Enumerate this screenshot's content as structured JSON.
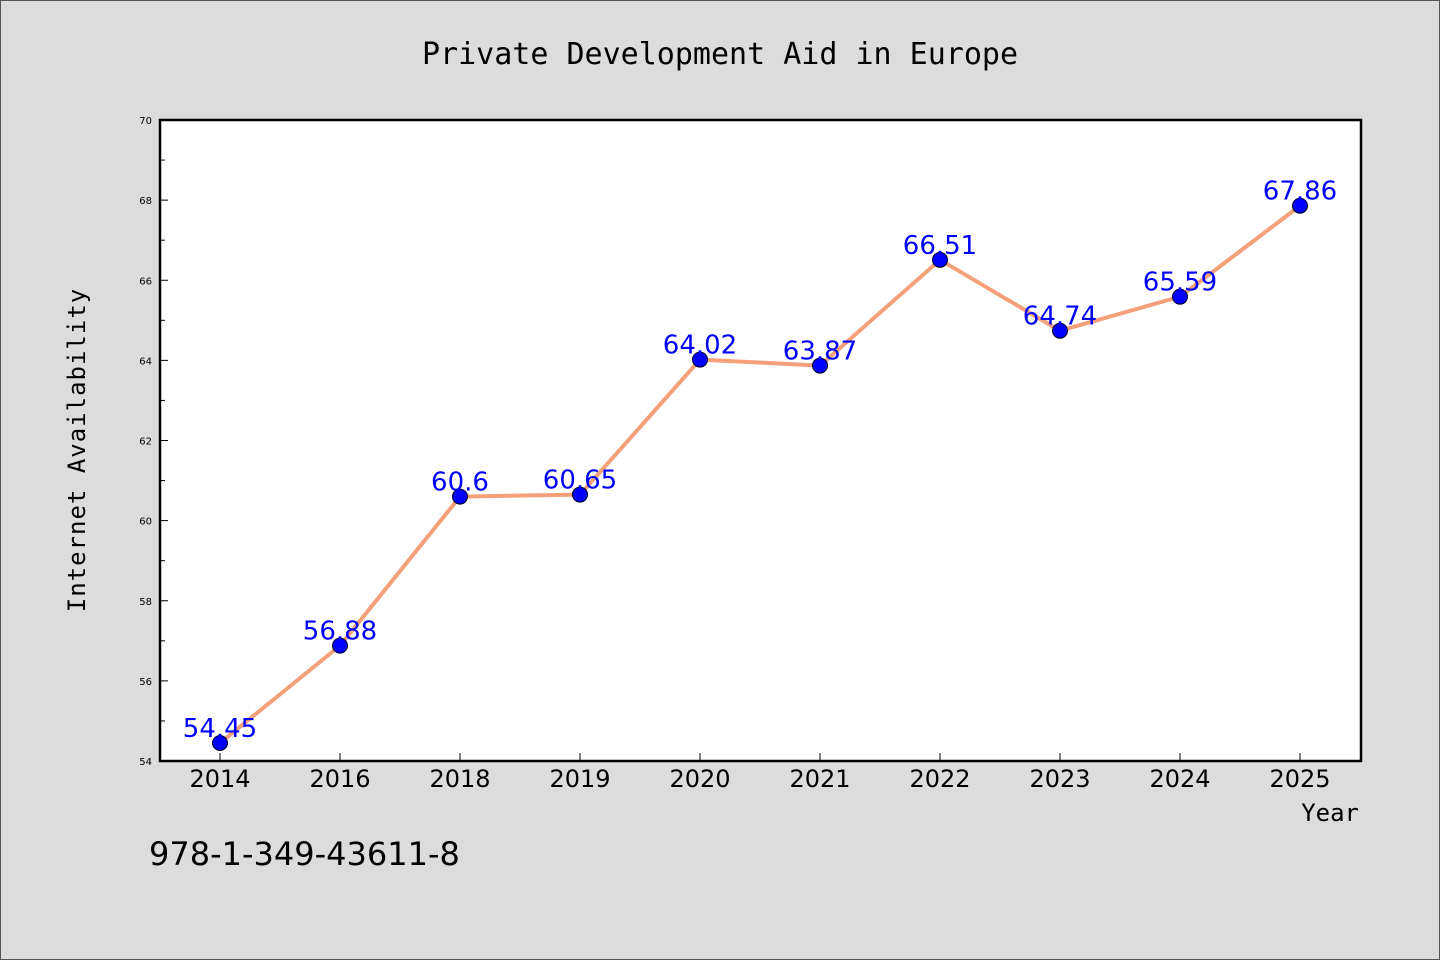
{
  "chart_data": {
    "type": "line",
    "title": "Private Development Aid in Europe",
    "xlabel": "Year",
    "ylabel": "Internet Availability",
    "categories": [
      "2014",
      "2016",
      "2018",
      "2019",
      "2020",
      "2021",
      "2022",
      "2023",
      "2024",
      "2025"
    ],
    "series": [
      {
        "values": [
          54.45,
          56.88,
          60.6,
          60.65,
          64.02,
          63.87,
          66.51,
          64.74,
          65.59,
          67.86
        ],
        "data_labels": [
          "54.45",
          "56.88",
          "60.6",
          "60.65",
          "64.02",
          "63.87",
          "66.51",
          "64.74",
          "65.59",
          "67.86"
        ]
      }
    ],
    "ylim": [
      54,
      70
    ],
    "yticks": [
      54,
      56,
      58,
      60,
      62,
      64,
      66,
      68,
      70
    ],
    "ytick_labels": [
      "54",
      "56",
      "58",
      "60",
      "62",
      "64",
      "66",
      "68",
      "70"
    ],
    "grid": false,
    "legend": "none",
    "colors": {
      "line": "#f4a07a",
      "marker": "#0000ff",
      "data_label": "#0000ff",
      "background": "#dcdcdc",
      "plot_background": "#ffffff"
    }
  },
  "annotation": {
    "isbn": "978-1-349-43611-8"
  }
}
